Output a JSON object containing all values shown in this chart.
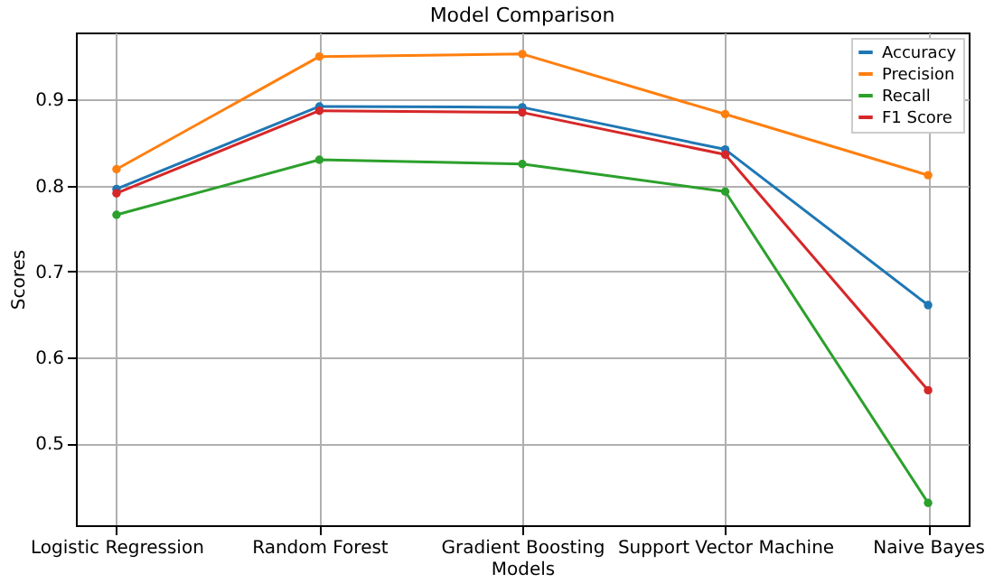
{
  "chart_data": {
    "type": "line",
    "title": "Model Comparison",
    "xlabel": "Models",
    "ylabel": "Scores",
    "categories": [
      "Logistic Regression",
      "Random Forest",
      "Gradient Boosting",
      "Support Vector Machine",
      "Naive Bayes"
    ],
    "series": [
      {
        "name": "Accuracy",
        "color": "#1f77b4",
        "values": [
          0.796,
          0.892,
          0.891,
          0.842,
          0.661
        ]
      },
      {
        "name": "Precision",
        "color": "#ff7f0e",
        "values": [
          0.819,
          0.95,
          0.953,
          0.883,
          0.812
        ]
      },
      {
        "name": "Recall",
        "color": "#2ca02c",
        "values": [
          0.766,
          0.83,
          0.825,
          0.793,
          0.431
        ]
      },
      {
        "name": "F1 Score",
        "color": "#d62728",
        "values": [
          0.791,
          0.887,
          0.885,
          0.836,
          0.562
        ]
      }
    ],
    "ylim": [
      0.405,
      0.978
    ],
    "yticks": [
      0.5,
      0.6,
      0.7,
      0.8,
      0.9
    ],
    "grid": true,
    "legend": "top right",
    "marker": "circle",
    "line_style": "solid"
  }
}
